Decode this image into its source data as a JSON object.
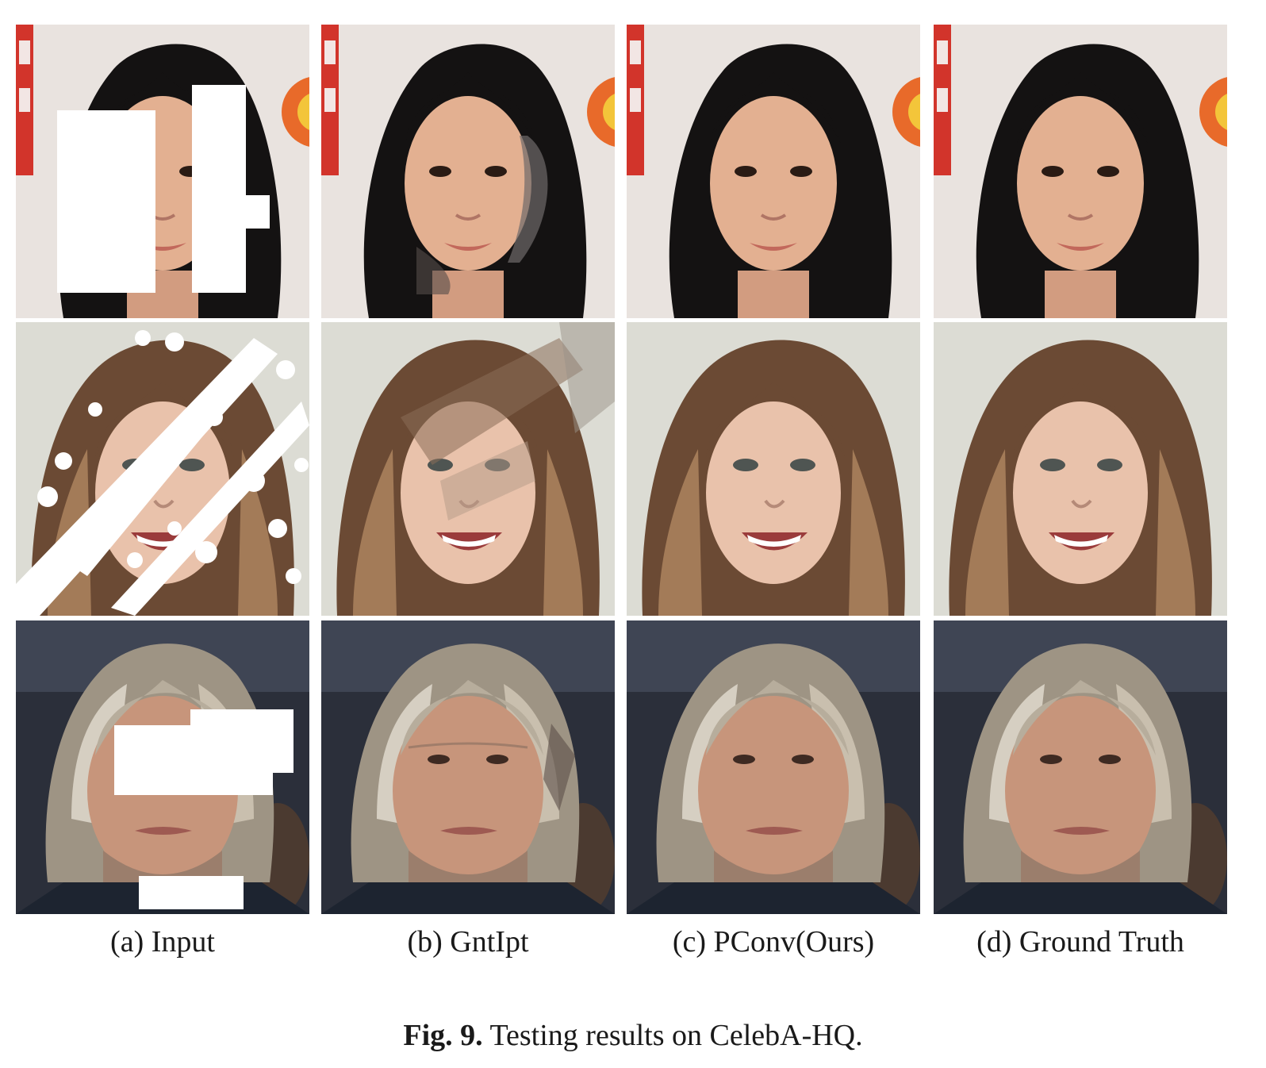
{
  "figure": {
    "columns": [
      {
        "id": "input",
        "label": "(a) Input"
      },
      {
        "id": "gntipt",
        "label": "(b) GntIpt"
      },
      {
        "id": "pconv",
        "label": "(c) PConv(Ours)"
      },
      {
        "id": "ground_truth",
        "label": "(d) Ground Truth"
      }
    ],
    "caption": {
      "prefix": "Fig. 9.",
      "text": "Testing results on CelebA-HQ."
    }
  }
}
